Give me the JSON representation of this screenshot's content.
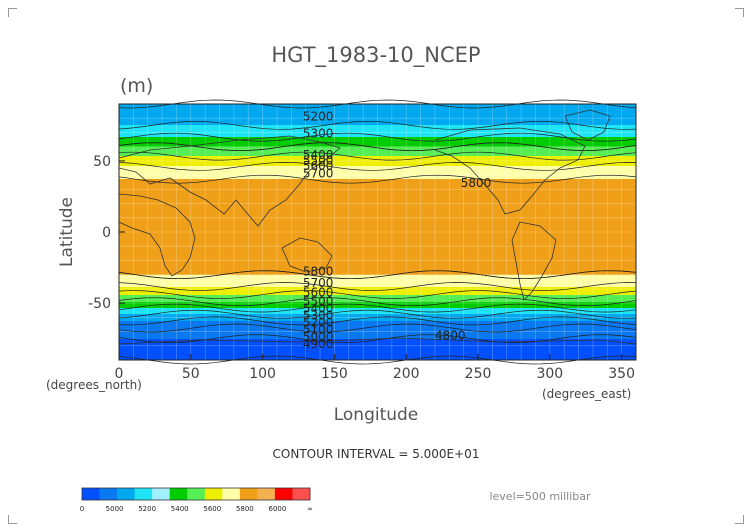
{
  "chart_data": {
    "type": "heatmap",
    "title": "HGT_1983-10_NCEP",
    "units": "(m)",
    "xlabel": "Longitude",
    "ylabel": "Latitude",
    "x_unit_label": "(degrees_east)",
    "y_unit_label": "(degrees_north)",
    "xlim": [
      0,
      360
    ],
    "ylim": [
      -90,
      90
    ],
    "xticks": [
      "0",
      "50",
      "100",
      "150",
      "200",
      "250",
      "300",
      "350"
    ],
    "yticks": [
      "50",
      "0",
      "-50"
    ],
    "contour_interval_text": "CONTOUR INTERVAL = 5.000E+01",
    "level_text": "level=500 millibar",
    "colorbar": {
      "labels": [
        "0",
        "5000",
        "5200",
        "5400",
        "5600",
        "5800",
        "6000",
        "∞"
      ],
      "colors": [
        "#0050ff",
        "#0a78f0",
        "#00a8f0",
        "#1ee4f5",
        "#a0f0ff",
        "#00cc00",
        "#55ee55",
        "#eeee00",
        "#ffffaa",
        "#f0a018",
        "#f5b050",
        "#ff0000",
        "#ff5050"
      ]
    },
    "zonal_profile": {
      "latitudes": [
        90,
        80,
        70,
        60,
        50,
        40,
        30,
        20,
        10,
        0,
        -10,
        -20,
        -30,
        -40,
        -50,
        -60,
        -70,
        -80,
        -90
      ],
      "heights_m": [
        5200,
        5250,
        5350,
        5500,
        5650,
        5780,
        5850,
        5870,
        5870,
        5870,
        5870,
        5860,
        5800,
        5680,
        5480,
        5250,
        5050,
        4950,
        4900
      ]
    },
    "contour_labels": [
      {
        "text": "5200",
        "lon": 128,
        "lat": 82
      },
      {
        "text": "5300",
        "lon": 128,
        "lat": 70
      },
      {
        "text": "5400",
        "lon": 128,
        "lat": 55
      },
      {
        "text": "5500",
        "lon": 128,
        "lat": 51
      },
      {
        "text": "5600",
        "lon": 128,
        "lat": 47
      },
      {
        "text": "5700",
        "lon": 128,
        "lat": 42
      },
      {
        "text": "5800",
        "lon": 238,
        "lat": 35
      },
      {
        "text": "5800",
        "lon": 128,
        "lat": -27
      },
      {
        "text": "5700",
        "lon": 128,
        "lat": -35
      },
      {
        "text": "5600",
        "lon": 128,
        "lat": -42
      },
      {
        "text": "5500",
        "lon": 128,
        "lat": -48
      },
      {
        "text": "5400",
        "lon": 128,
        "lat": -53
      },
      {
        "text": "5300",
        "lon": 128,
        "lat": -58
      },
      {
        "text": "5200",
        "lon": 128,
        "lat": -63
      },
      {
        "text": "5100",
        "lon": 128,
        "lat": -68
      },
      {
        "text": "5000",
        "lon": 128,
        "lat": -73
      },
      {
        "text": "4900",
        "lon": 128,
        "lat": -78
      },
      {
        "text": "4800",
        "lon": 220,
        "lat": -72
      }
    ]
  }
}
